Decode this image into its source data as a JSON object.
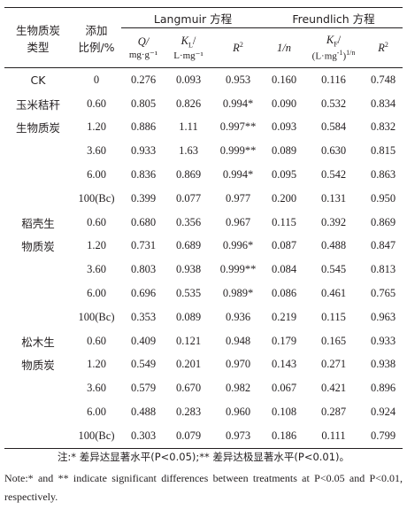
{
  "header": {
    "type_label_1": "生物质炭",
    "type_label_2": "类型",
    "ratio_label_1": "添加",
    "ratio_label_2": "比例/%",
    "langmuir": "Langmuir 方程",
    "freundlich": "Freundlich 方程",
    "q_top": "Q/",
    "q_unit": "mg·g⁻¹",
    "kl_top": "K",
    "kl_sub": "L",
    "kl_unit": "L·mg⁻¹",
    "r2_l": "R",
    "r2_sup": "2",
    "n_inv": "1/n",
    "kf_top": "K",
    "kf_sub": "F",
    "kf_unit_a": "(L·mg",
    "kf_unit_sup": "-1",
    "kf_unit_b": ")",
    "kf_unit_sup2": "1/n",
    "r2_f": "R",
    "r2_f_sup": "2"
  },
  "rows": [
    {
      "type": "CK",
      "ratio": "0",
      "q": "0.276",
      "kl": "0.093",
      "r2l": "0.953",
      "n": "0.160",
      "kf": "0.116",
      "r2f": "0.748"
    },
    {
      "type": "玉米秸秆",
      "ratio": "0.60",
      "q": "0.805",
      "kl": "0.826",
      "r2l": "0.994*",
      "n": "0.090",
      "kf": "0.532",
      "r2f": "0.834"
    },
    {
      "type": "生物质炭",
      "ratio": "1.20",
      "q": "0.886",
      "kl": "1.11",
      "r2l": "0.997**",
      "n": "0.093",
      "kf": "0.584",
      "r2f": "0.832"
    },
    {
      "type": "",
      "ratio": "3.60",
      "q": "0.933",
      "kl": "1.63",
      "r2l": "0.999**",
      "n": "0.089",
      "kf": "0.630",
      "r2f": "0.815"
    },
    {
      "type": "",
      "ratio": "6.00",
      "q": "0.836",
      "kl": "0.869",
      "r2l": "0.994*",
      "n": "0.095",
      "kf": "0.542",
      "r2f": "0.863"
    },
    {
      "type": "",
      "ratio": "100(Bc)",
      "q": "0.399",
      "kl": "0.077",
      "r2l": "0.977",
      "n": "0.200",
      "kf": "0.131",
      "r2f": "0.950"
    },
    {
      "type": "稻壳生",
      "ratio": "0.60",
      "q": "0.680",
      "kl": "0.356",
      "r2l": "0.967",
      "n": "0.115",
      "kf": "0.392",
      "r2f": "0.869"
    },
    {
      "type": "物质炭",
      "ratio": "1.20",
      "q": "0.731",
      "kl": "0.689",
      "r2l": "0.996*",
      "n": "0.087",
      "kf": "0.488",
      "r2f": "0.847"
    },
    {
      "type": "",
      "ratio": "3.60",
      "q": "0.803",
      "kl": "0.938",
      "r2l": "0.999**",
      "n": "0.084",
      "kf": "0.545",
      "r2f": "0.813"
    },
    {
      "type": "",
      "ratio": "6.00",
      "q": "0.696",
      "kl": "0.535",
      "r2l": "0.989*",
      "n": "0.086",
      "kf": "0.461",
      "r2f": "0.765"
    },
    {
      "type": "",
      "ratio": "100(Bc)",
      "q": "0.353",
      "kl": "0.089",
      "r2l": "0.936",
      "n": "0.219",
      "kf": "0.115",
      "r2f": "0.963"
    },
    {
      "type": "松木生",
      "ratio": "0.60",
      "q": "0.409",
      "kl": "0.121",
      "r2l": "0.948",
      "n": "0.179",
      "kf": "0.165",
      "r2f": "0.933"
    },
    {
      "type": "物质炭",
      "ratio": "1.20",
      "q": "0.549",
      "kl": "0.201",
      "r2l": "0.970",
      "n": "0.143",
      "kf": "0.271",
      "r2f": "0.938"
    },
    {
      "type": "",
      "ratio": "3.60",
      "q": "0.579",
      "kl": "0.670",
      "r2l": "0.982",
      "n": "0.067",
      "kf": "0.421",
      "r2f": "0.896"
    },
    {
      "type": "",
      "ratio": "6.00",
      "q": "0.488",
      "kl": "0.283",
      "r2l": "0.960",
      "n": "0.108",
      "kf": "0.287",
      "r2f": "0.924"
    },
    {
      "type": "",
      "ratio": "100(Bc)",
      "q": "0.303",
      "kl": "0.079",
      "r2l": "0.973",
      "n": "0.186",
      "kf": "0.111",
      "r2f": "0.799"
    }
  ],
  "notes": {
    "cn": "注:* 差异达显著水平(P<0.05);** 差异达极显著水平(P<0.01)。",
    "en": "Note:* and ** indicate significant differences between treatments at P<0.05 and P<0.01, respectively."
  }
}
